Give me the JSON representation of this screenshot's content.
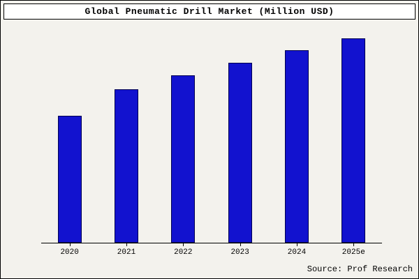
{
  "window": {
    "title": "Global Pneumatic Drill Market (Million USD)"
  },
  "chart_data": {
    "type": "bar",
    "title": "Global Pneumatic Drill Market (Million USD)",
    "categories": [
      "2020",
      "2021",
      "2022",
      "2023",
      "2024",
      "2025e"
    ],
    "values": [
      62,
      75,
      82,
      88,
      94,
      100
    ],
    "ylim": [
      0,
      104
    ],
    "xlabel": "",
    "ylabel": "",
    "grid": false,
    "legend": false,
    "y_axis_labels_visible": false,
    "bar_color": "#1212cf",
    "bar_border_color": "#000050",
    "background_color": "#f3f2ed",
    "title_box_color": "#ffffff"
  },
  "footer": {
    "source_label": "Source: Prof Research"
  }
}
